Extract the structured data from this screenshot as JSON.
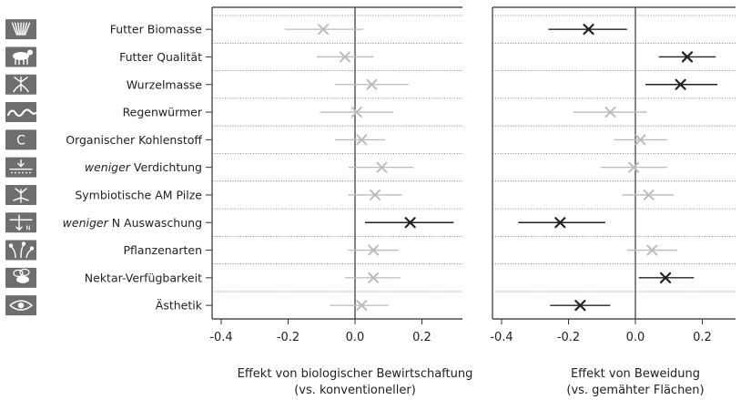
{
  "chart_data": [
    {
      "type": "forest",
      "xlabel": "Effekt von biologischer Bewirtschaftung",
      "xlabel2": "(vs. konventioneller)",
      "xlim": [
        -0.45,
        0.32
      ],
      "xticks": [
        "-0.4",
        "-0.2",
        "0.0",
        "0.2"
      ],
      "points": [
        {
          "x": -0.095,
          "lo": -0.21,
          "hi": 0.025,
          "significant": false
        },
        {
          "x": -0.03,
          "lo": -0.115,
          "hi": 0.055,
          "significant": false
        },
        {
          "x": 0.05,
          "lo": -0.06,
          "hi": 0.16,
          "significant": false
        },
        {
          "x": 0.005,
          "lo": -0.105,
          "hi": 0.115,
          "significant": false
        },
        {
          "x": 0.02,
          "lo": -0.06,
          "hi": 0.09,
          "significant": false
        },
        {
          "x": 0.08,
          "lo": -0.02,
          "hi": 0.175,
          "significant": false
        },
        {
          "x": 0.06,
          "lo": -0.02,
          "hi": 0.14,
          "significant": false
        },
        {
          "x": 0.165,
          "lo": 0.03,
          "hi": 0.295,
          "significant": true
        },
        {
          "x": 0.055,
          "lo": -0.02,
          "hi": 0.13,
          "significant": false
        },
        {
          "x": 0.055,
          "lo": -0.03,
          "hi": 0.135,
          "significant": false
        },
        {
          "x": 0.02,
          "lo": -0.075,
          "hi": 0.1,
          "significant": false
        }
      ]
    },
    {
      "type": "forest",
      "xlabel": "Effekt von Beweidung",
      "xlabel2": "(vs. gemähter Flächen)",
      "xlim": [
        -0.44,
        0.33
      ],
      "xticks": [
        "-0.4",
        "-0.2",
        "0.0",
        "0.2"
      ],
      "points": [
        {
          "x": -0.14,
          "lo": -0.26,
          "hi": -0.025,
          "significant": true
        },
        {
          "x": 0.155,
          "lo": 0.07,
          "hi": 0.24,
          "significant": true
        },
        {
          "x": 0.135,
          "lo": 0.03,
          "hi": 0.245,
          "significant": true
        },
        {
          "x": -0.075,
          "lo": -0.185,
          "hi": 0.035,
          "significant": false
        },
        {
          "x": 0.015,
          "lo": -0.065,
          "hi": 0.095,
          "significant": false
        },
        {
          "x": -0.005,
          "lo": -0.105,
          "hi": 0.095,
          "significant": false
        },
        {
          "x": 0.04,
          "lo": -0.04,
          "hi": 0.115,
          "significant": false
        },
        {
          "x": -0.225,
          "lo": -0.35,
          "hi": -0.09,
          "significant": true
        },
        {
          "x": 0.05,
          "lo": -0.025,
          "hi": 0.125,
          "significant": false
        },
        {
          "x": 0.09,
          "lo": 0.01,
          "hi": 0.175,
          "significant": true
        },
        {
          "x": -0.165,
          "lo": -0.255,
          "hi": -0.075,
          "significant": true
        }
      ]
    }
  ],
  "categories": [
    {
      "label": "Futter Biomasse",
      "icon": "grass-biomass-icon"
    },
    {
      "label": "Futter Qualität",
      "icon": "cow-icon"
    },
    {
      "label": "Wurzelmasse",
      "icon": "roots-icon"
    },
    {
      "label": "Regenwürmer",
      "icon": "earthworm-icon"
    },
    {
      "label": "Organischer Kohlenstoff",
      "icon": "carbon-c-icon"
    },
    {
      "prefix": "weniger",
      "label": "Verdichtung",
      "icon": "soil-compaction-icon"
    },
    {
      "label": "Symbiotische AM Pilze",
      "icon": "mycorrhiza-icon"
    },
    {
      "prefix": "weniger",
      "label": "N Auswaschung",
      "icon": "nitrogen-leaching-icon"
    },
    {
      "label": "Pflanzenarten",
      "icon": "plant-species-icon"
    },
    {
      "label": "Nektar-Verfügbarkeit",
      "icon": "bee-icon"
    },
    {
      "label": "Ästhetik",
      "icon": "eye-icon"
    }
  ],
  "colors": {
    "significant": "#222222",
    "nonsignificant": "#bcbcbc",
    "icon_bg": "#6e6e6e"
  }
}
